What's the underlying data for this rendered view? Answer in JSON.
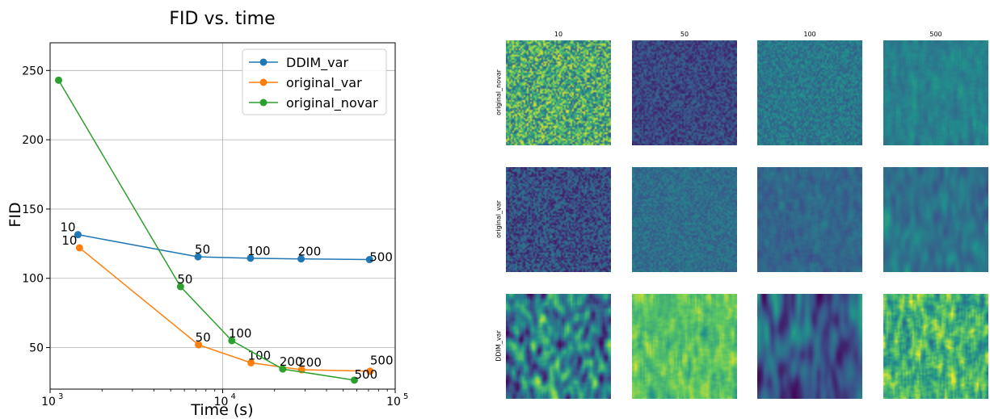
{
  "chart_data": {
    "type": "line",
    "title": "FID vs. time",
    "xlabel": "Time (s)",
    "ylabel": "FID",
    "xscale": "log",
    "xlim": [
      1000,
      100000
    ],
    "ylim": [
      20,
      270
    ],
    "x_ticks": [
      {
        "base": "10",
        "exp": "3",
        "value": 1000
      },
      {
        "base": "10",
        "exp": "4",
        "value": 10000
      },
      {
        "base": "10",
        "exp": "5",
        "value": 100000
      }
    ],
    "y_ticks": [
      "50",
      "100",
      "150",
      "200",
      "250"
    ],
    "grid": true,
    "legend_placement": "top-right",
    "series": [
      {
        "name": "DDIM_var",
        "color": "#1f77b4",
        "points": [
          {
            "x": 1450,
            "y": 131.5,
            "label": "10"
          },
          {
            "x": 7200,
            "y": 115.5,
            "label": "50"
          },
          {
            "x": 14500,
            "y": 114.5,
            "label": "100"
          },
          {
            "x": 28500,
            "y": 114.0,
            "label": "200"
          },
          {
            "x": 71000,
            "y": 113.5,
            "label": "500"
          }
        ]
      },
      {
        "name": "original_var",
        "color": "#ff7f0e",
        "points": [
          {
            "x": 1480,
            "y": 122.0,
            "label": "10"
          },
          {
            "x": 7250,
            "y": 52.0,
            "label": "50"
          },
          {
            "x": 14600,
            "y": 39.0,
            "label": "100"
          },
          {
            "x": 28700,
            "y": 34.0,
            "label": "200"
          },
          {
            "x": 71500,
            "y": 33.0,
            "label": "500"
          }
        ]
      },
      {
        "name": "original_novar",
        "color": "#2ca02c",
        "points": [
          {
            "x": 1120,
            "y": 243.0,
            "label": ""
          },
          {
            "x": 5700,
            "y": 94.0,
            "label": "50"
          },
          {
            "x": 11300,
            "y": 55.0,
            "label": "100"
          },
          {
            "x": 22300,
            "y": 34.5,
            "label": "200"
          },
          {
            "x": 58000,
            "y": 26.5,
            "label": "500"
          }
        ]
      }
    ]
  },
  "grid_figure": {
    "column_titles": [
      "10",
      "50",
      "100",
      "500"
    ],
    "row_labels": [
      "original_novar",
      "original_var",
      "DDIM_var"
    ],
    "tiles": [
      [
        {
          "mean": 0.62,
          "var": 0.35,
          "smooth": 0.0,
          "stretch": 1
        },
        {
          "mean": 0.22,
          "var": 0.14,
          "smooth": 0.0,
          "stretch": 1
        },
        {
          "mean": 0.4,
          "var": 0.12,
          "smooth": 0.1,
          "stretch": 2
        },
        {
          "mean": 0.42,
          "var": 0.12,
          "smooth": 0.2,
          "stretch": 3
        }
      ],
      [
        {
          "mean": 0.24,
          "var": 0.18,
          "smooth": 0.0,
          "stretch": 1
        },
        {
          "mean": 0.36,
          "var": 0.1,
          "smooth": 0.1,
          "stretch": 2
        },
        {
          "mean": 0.33,
          "var": 0.12,
          "smooth": 0.2,
          "stretch": 2
        },
        {
          "mean": 0.4,
          "var": 0.15,
          "smooth": 0.5,
          "stretch": 3
        }
      ],
      [
        {
          "mean": 0.45,
          "var": 0.45,
          "smooth": 0.5,
          "stretch": 2
        },
        {
          "mean": 0.72,
          "var": 0.25,
          "smooth": 0.3,
          "stretch": 4
        },
        {
          "mean": 0.3,
          "var": 0.3,
          "smooth": 0.8,
          "stretch": 4
        },
        {
          "mean": 0.66,
          "var": 0.38,
          "smooth": 0.3,
          "stretch": 3
        }
      ]
    ]
  }
}
